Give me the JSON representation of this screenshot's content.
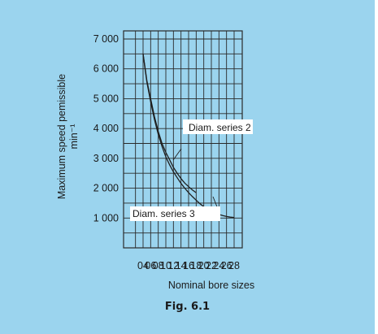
{
  "chart_data": {
    "type": "line",
    "caption": "Fig. 6.1",
    "ylabel_line1": "Maximum speed pemissible",
    "ylabel_line2": "min⁻¹",
    "xlabel": "Nominal bore sizes",
    "categories": [
      "04",
      "06",
      "08",
      "10",
      "12",
      "14",
      "16",
      "18",
      "20",
      "22",
      "24",
      "26",
      "28"
    ],
    "y_ticks": [
      1000,
      2000,
      3000,
      4000,
      5000,
      6000,
      7000
    ],
    "y_tick_labels": [
      "1 000",
      "2 000",
      "3 000",
      "4 000",
      "5 000",
      "6 000",
      "7 000"
    ],
    "ylim": [
      0,
      7000
    ],
    "grid": true,
    "series": [
      {
        "name": "Diam. series 2",
        "points": [
          [
            4,
            6500
          ],
          [
            5,
            5600
          ],
          [
            6,
            5000
          ],
          [
            7,
            4400
          ],
          [
            8,
            3900
          ],
          [
            9,
            3500
          ],
          [
            10,
            3200
          ],
          [
            11,
            2950
          ],
          [
            12,
            2700
          ],
          [
            13,
            2500
          ],
          [
            14,
            2320
          ],
          [
            15,
            2170
          ],
          [
            16,
            2050
          ],
          [
            17,
            1940
          ],
          [
            18,
            1850
          ]
        ]
      },
      {
        "name": "Diam. series 3",
        "points": [
          [
            4,
            6500
          ],
          [
            5,
            5550
          ],
          [
            6,
            4900
          ],
          [
            7,
            4300
          ],
          [
            8,
            3800
          ],
          [
            9,
            3400
          ],
          [
            10,
            3050
          ],
          [
            11,
            2780
          ],
          [
            12,
            2550
          ],
          [
            13,
            2350
          ],
          [
            14,
            2160
          ],
          [
            15,
            2000
          ],
          [
            16,
            1850
          ],
          [
            17,
            1720
          ],
          [
            18,
            1600
          ],
          [
            19,
            1480
          ],
          [
            20,
            1380
          ],
          [
            21,
            1300
          ],
          [
            22,
            1230
          ],
          [
            23,
            1170
          ],
          [
            24,
            1120
          ],
          [
            25,
            1080
          ],
          [
            26,
            1050
          ],
          [
            27,
            1030
          ],
          [
            28,
            1020
          ]
        ]
      }
    ],
    "annotations": [
      {
        "text": "Diam. series 2",
        "series": 0
      },
      {
        "text": "Diam. series 3",
        "series": 1
      }
    ]
  }
}
